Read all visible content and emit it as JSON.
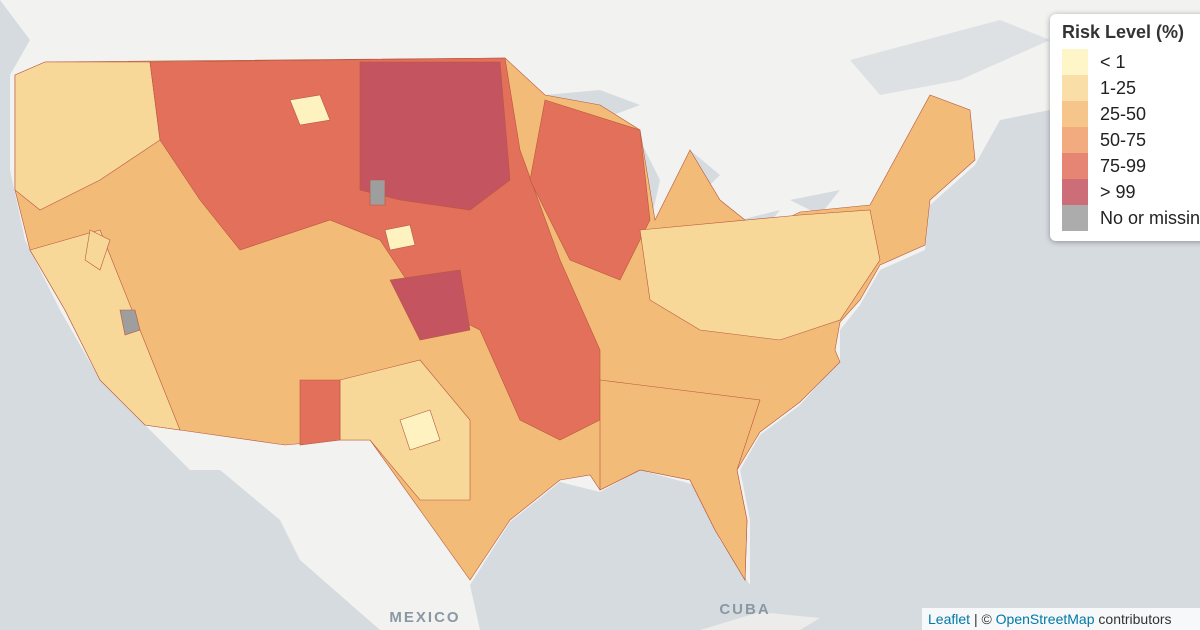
{
  "legend": {
    "title": "Risk Level (%)",
    "items": [
      {
        "label": "< 1",
        "color": "#fef3c0"
      },
      {
        "label": "1-25",
        "color": "#f8d898"
      },
      {
        "label": "25-50",
        "color": "#f3bb78"
      },
      {
        "label": "50-75",
        "color": "#ee9c68"
      },
      {
        "label": "75-99",
        "color": "#e2705a"
      },
      {
        "label": "> 99",
        "color": "#c45460"
      },
      {
        "label": "No or missing",
        "color": "#9e9e9e"
      }
    ]
  },
  "map_labels": [
    "MEXICO",
    "CUBA"
  ],
  "attribution": {
    "leaflet": "Leaflet",
    "separator": "| ©",
    "osm": "OpenStreetMap",
    "suffix": "contributors"
  }
}
